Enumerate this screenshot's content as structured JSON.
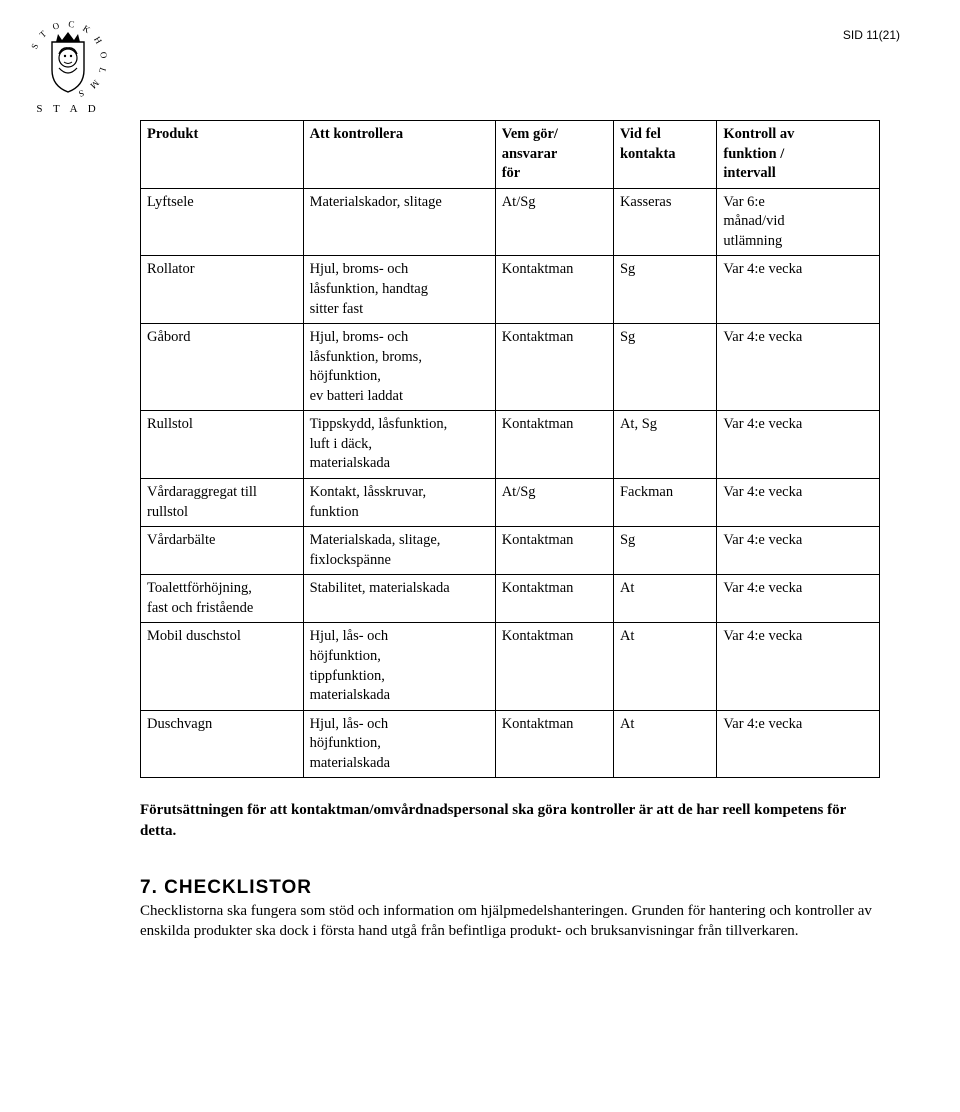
{
  "page_number": "SID 11(21)",
  "logo": {
    "top_text": "STOCKHOLMS",
    "bottom_text": "STAD"
  },
  "table": {
    "headers": [
      "Produkt",
      "Att kontrollera",
      "Vem gör/\nansvarar\nför",
      "Vid fel\nkontakta",
      "Kontroll av\nfunktion /\nintervall"
    ],
    "col_widths": [
      "22%",
      "26%",
      "16%",
      "14%",
      "22%"
    ],
    "rows": [
      [
        "Lyftsele",
        "Materialskador, slitage",
        "At/Sg",
        "Kasseras",
        "Var 6:e\nmånad/vid\nutlämning"
      ],
      [
        "Rollator",
        "Hjul, broms- och\nlåsfunktion, handtag\nsitter fast",
        "Kontaktman",
        "Sg",
        "Var 4:e vecka"
      ],
      [
        "Gåbord",
        "Hjul, broms- och\nlåsfunktion, broms,\nhöjfunktion,\nev batteri laddat",
        "Kontaktman",
        "Sg",
        "Var 4:e vecka"
      ],
      [
        "Rullstol",
        "Tippskydd, låsfunktion,\nluft i däck,\nmaterialskada",
        "Kontaktman",
        "At, Sg",
        "Var 4:e vecka"
      ],
      [
        "Vårdaraggregat till\nrullstol",
        "Kontakt, låsskruvar,\nfunktion",
        "At/Sg",
        "Fackman",
        "Var 4:e vecka"
      ],
      [
        "Vårdarbälte",
        "Materialskada, slitage,\nfixlockspänne",
        "Kontaktman",
        "Sg",
        "Var 4:e vecka"
      ],
      [
        "Toalettförhöjning,\nfast och fristående",
        "Stabilitet, materialskada",
        "Kontaktman",
        "At",
        "Var 4:e vecka"
      ],
      [
        "Mobil duschstol",
        "Hjul, lås- och\nhöjfunktion,\ntippfunktion,\nmaterialskada",
        "Kontaktman",
        "At",
        "Var 4:e vecka"
      ],
      [
        "Duschvagn",
        "Hjul, lås- och\nhöjfunktion,\nmaterialskada",
        "Kontaktman",
        "At",
        "Var 4:e vecka"
      ]
    ]
  },
  "paragraph": "Förutsättningen för att kontaktman/omvårdnadspersonal ska göra kontroller är att de har reell kompetens för detta.",
  "section": {
    "heading": "7. CHECKLISTOR",
    "body": "Checklistorna ska fungera som stöd och information om hjälpmedelshanteringen. Grunden för hantering och kontroller av enskilda produkter ska dock i första hand utgå från befintliga produkt- och bruksanvisningar från tillverkaren."
  },
  "colors": {
    "text": "#000000",
    "background": "#ffffff",
    "border": "#000000"
  }
}
